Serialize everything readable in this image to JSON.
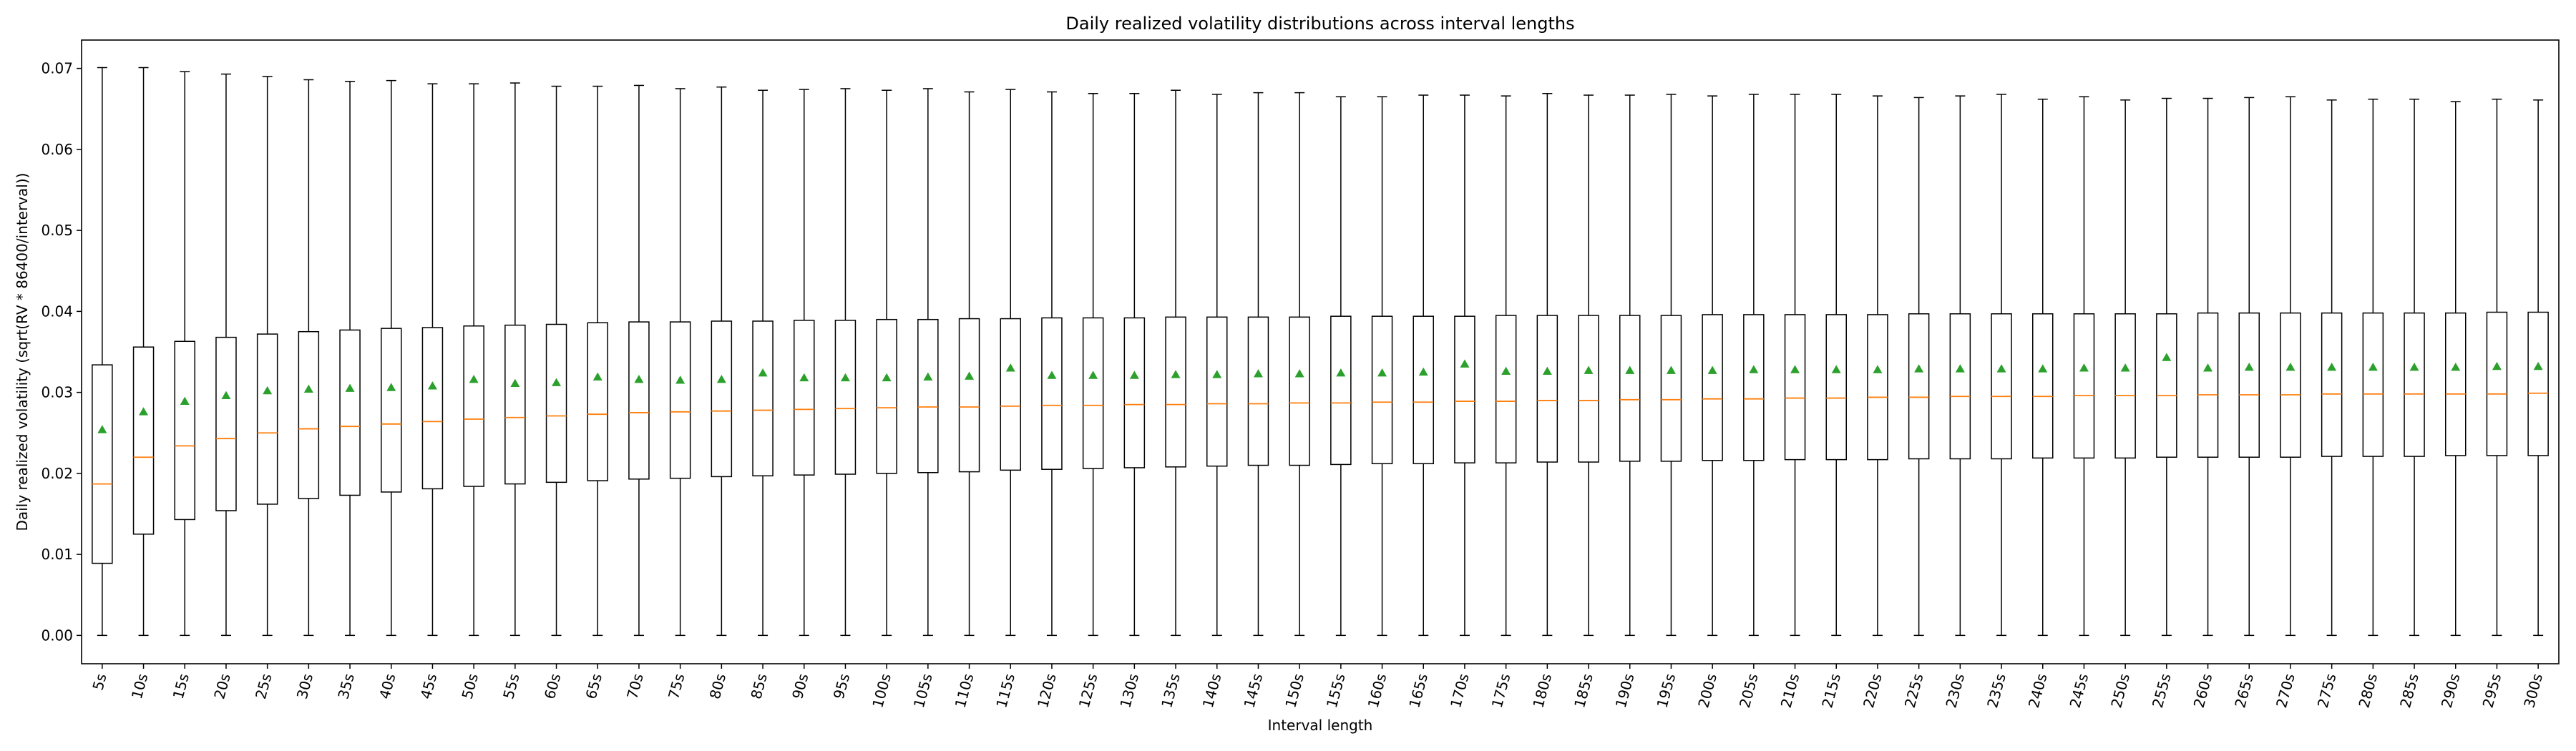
{
  "chart_data": {
    "type": "box",
    "title": "Daily realized volatility distributions across interval lengths",
    "xlabel": "Interval length",
    "ylabel": "Daily realized volatility (sqrt(RV * 86400/interval))",
    "ylim": [
      -0.0035,
      0.0735
    ],
    "yticks": [
      0.0,
      0.01,
      0.02,
      0.03,
      0.04,
      0.05,
      0.06,
      0.07
    ],
    "yticklabels": [
      "0.00",
      "0.01",
      "0.02",
      "0.03",
      "0.04",
      "0.05",
      "0.06",
      "0.07"
    ],
    "grid": false,
    "legend": "none",
    "categories": [
      "5s",
      "10s",
      "15s",
      "20s",
      "25s",
      "30s",
      "35s",
      "40s",
      "45s",
      "50s",
      "55s",
      "60s",
      "65s",
      "70s",
      "75s",
      "80s",
      "85s",
      "90s",
      "95s",
      "100s",
      "105s",
      "110s",
      "115s",
      "120s",
      "125s",
      "130s",
      "135s",
      "140s",
      "145s",
      "150s",
      "155s",
      "160s",
      "165s",
      "170s",
      "175s",
      "180s",
      "185s",
      "190s",
      "195s",
      "200s",
      "205s",
      "210s",
      "215s",
      "220s",
      "225s",
      "230s",
      "235s",
      "240s",
      "245s",
      "250s",
      "255s",
      "260s",
      "265s",
      "270s",
      "275s",
      "280s",
      "285s",
      "290s",
      "295s",
      "300s"
    ],
    "whisker_low": [
      0,
      0,
      0,
      0,
      0,
      0,
      0,
      0,
      0,
      0,
      0,
      0,
      0,
      0,
      0,
      0,
      0,
      0,
      0,
      0,
      0,
      0,
      0,
      0,
      0,
      0,
      0,
      0,
      0,
      0,
      0,
      0,
      0,
      0,
      0,
      0,
      0,
      0,
      0,
      0,
      0,
      0,
      0,
      0,
      0,
      0,
      0,
      0,
      0,
      0,
      0,
      0,
      0,
      0,
      0,
      0,
      0,
      0,
      0,
      0
    ],
    "q1": [
      0.0089,
      0.0125,
      0.0143,
      0.0154,
      0.0162,
      0.0169,
      0.0173,
      0.0177,
      0.0181,
      0.0184,
      0.0187,
      0.0189,
      0.0191,
      0.0193,
      0.0194,
      0.0196,
      0.0197,
      0.0198,
      0.0199,
      0.02,
      0.0201,
      0.0202,
      0.0204,
      0.0205,
      0.0206,
      0.0207,
      0.0208,
      0.0209,
      0.021,
      0.021,
      0.0211,
      0.0212,
      0.0212,
      0.0213,
      0.0213,
      0.0214,
      0.0214,
      0.0215,
      0.0215,
      0.0216,
      0.0216,
      0.0217,
      0.0217,
      0.0217,
      0.0218,
      0.0218,
      0.0218,
      0.0219,
      0.0219,
      0.0219,
      0.022,
      0.022,
      0.022,
      0.022,
      0.0221,
      0.0221,
      0.0221,
      0.0222,
      0.0222,
      0.0222
    ],
    "median": [
      0.0187,
      0.022,
      0.0234,
      0.0243,
      0.025,
      0.0255,
      0.0258,
      0.0261,
      0.0264,
      0.0267,
      0.0269,
      0.0271,
      0.0273,
      0.0275,
      0.0276,
      0.0277,
      0.0278,
      0.0279,
      0.028,
      0.0281,
      0.0282,
      0.0282,
      0.0283,
      0.0284,
      0.0284,
      0.0285,
      0.0285,
      0.0286,
      0.0286,
      0.0287,
      0.0287,
      0.0288,
      0.0288,
      0.0289,
      0.0289,
      0.029,
      0.029,
      0.0291,
      0.0291,
      0.0292,
      0.0292,
      0.0293,
      0.0293,
      0.0294,
      0.0294,
      0.0295,
      0.0295,
      0.0295,
      0.0296,
      0.0296,
      0.0296,
      0.0297,
      0.0297,
      0.0297,
      0.0298,
      0.0298,
      0.0298,
      0.0298,
      0.0298,
      0.0299
    ],
    "q3": [
      0.0334,
      0.0356,
      0.0363,
      0.0368,
      0.0372,
      0.0375,
      0.0377,
      0.0379,
      0.038,
      0.0382,
      0.0383,
      0.0384,
      0.0386,
      0.0387,
      0.0387,
      0.0388,
      0.0388,
      0.0389,
      0.0389,
      0.039,
      0.039,
      0.0391,
      0.0391,
      0.0392,
      0.0392,
      0.0392,
      0.0393,
      0.0393,
      0.0393,
      0.0393,
      0.0394,
      0.0394,
      0.0394,
      0.0394,
      0.0395,
      0.0395,
      0.0395,
      0.0395,
      0.0395,
      0.0396,
      0.0396,
      0.0396,
      0.0396,
      0.0396,
      0.0397,
      0.0397,
      0.0397,
      0.0397,
      0.0397,
      0.0397,
      0.0397,
      0.0398,
      0.0398,
      0.0398,
      0.0398,
      0.0398,
      0.0398,
      0.0398,
      0.0399,
      0.0399
    ],
    "whisker_high": [
      0.0701,
      0.0701,
      0.0696,
      0.0693,
      0.069,
      0.0686,
      0.0684,
      0.0685,
      0.0681,
      0.0681,
      0.0682,
      0.0678,
      0.0678,
      0.0679,
      0.0675,
      0.0677,
      0.0673,
      0.0674,
      0.0675,
      0.0673,
      0.0675,
      0.0671,
      0.0674,
      0.0671,
      0.0669,
      0.0669,
      0.0673,
      0.0668,
      0.067,
      0.067,
      0.0665,
      0.0665,
      0.0667,
      0.0667,
      0.0666,
      0.0669,
      0.0667,
      0.0667,
      0.0668,
      0.0666,
      0.0668,
      0.0668,
      0.0668,
      0.0666,
      0.0664,
      0.0666,
      0.0668,
      0.0662,
      0.0665,
      0.0661,
      0.0663,
      0.0663,
      0.0664,
      0.0665,
      0.0661,
      0.0662,
      0.0662,
      0.0659,
      0.0662,
      0.0661
    ],
    "mean": [
      0.0254,
      0.0276,
      0.0289,
      0.0296,
      0.0302,
      0.0304,
      0.0305,
      0.0306,
      0.0308,
      0.0316,
      0.0311,
      0.0312,
      0.0319,
      0.0316,
      0.0315,
      0.0316,
      0.0324,
      0.0318,
      0.0318,
      0.0318,
      0.0319,
      0.032,
      0.033,
      0.0321,
      0.0321,
      0.0321,
      0.0322,
      0.0322,
      0.0323,
      0.0323,
      0.0324,
      0.0324,
      0.0325,
      0.0335,
      0.0326,
      0.0326,
      0.0327,
      0.0327,
      0.0327,
      0.0327,
      0.0328,
      0.0328,
      0.0328,
      0.0328,
      0.0329,
      0.0329,
      0.0329,
      0.0329,
      0.033,
      0.033,
      0.0343,
      0.033,
      0.0331,
      0.0331,
      0.0331,
      0.0331,
      0.0331,
      0.0331,
      0.0332,
      0.0332
    ],
    "colors": {
      "box": "#000000",
      "median": "#ff7f0e",
      "mean": "#2ca02c",
      "axes": "#000000",
      "background": "#ffffff"
    }
  }
}
